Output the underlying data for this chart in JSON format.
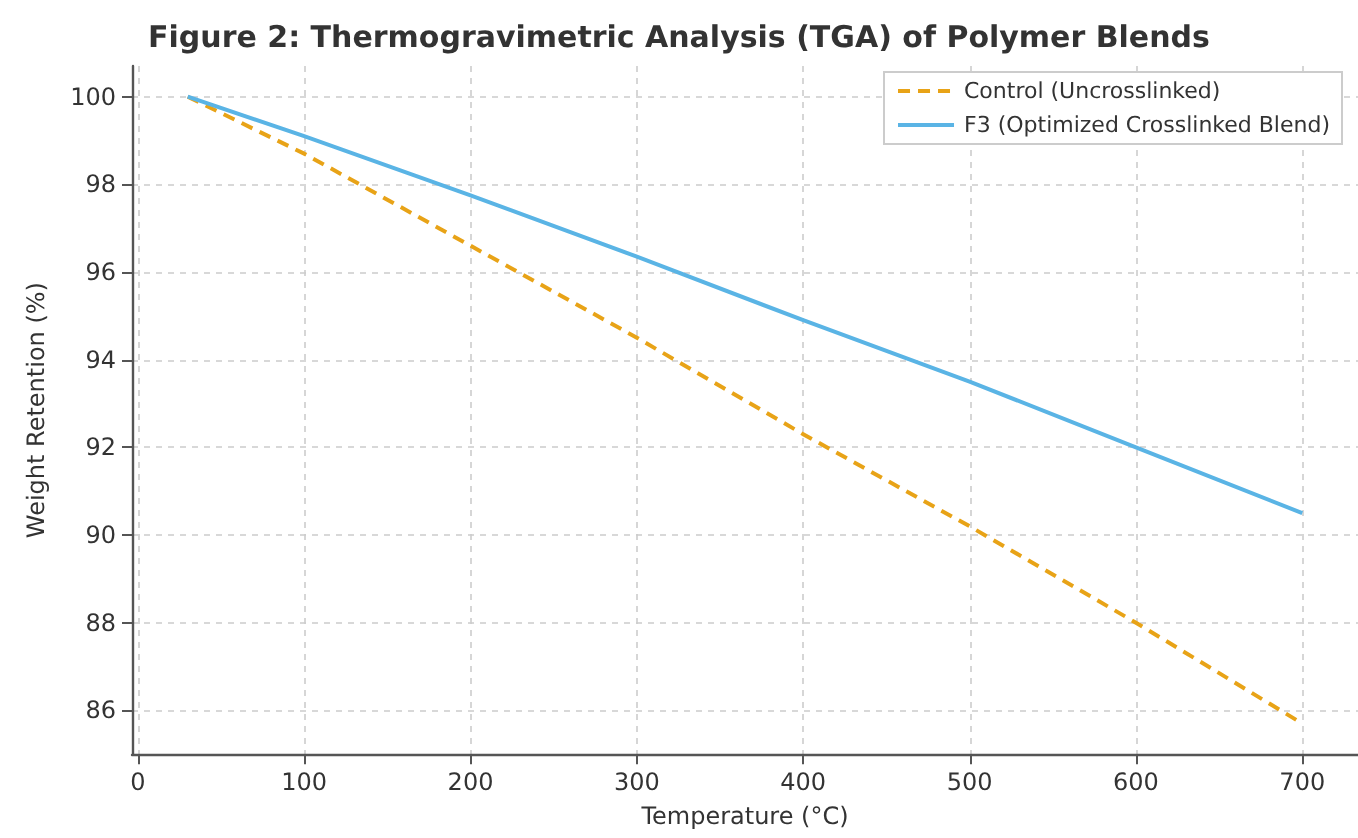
{
  "chart_data": {
    "type": "line",
    "title": "Figure 2: Thermogravimetric Analysis (TGA) of Polymer Blends",
    "xlabel": "Temperature (°C)",
    "ylabel": "Weight Retention (%)",
    "x": [
      30,
      100,
      200,
      300,
      400,
      500,
      600,
      700
    ],
    "series": [
      {
        "name": "Control (Uncrosslinked)",
        "color": "#e8a317",
        "line_style": "dashed",
        "values": [
          100,
          98.7,
          96.6,
          94.5,
          92.3,
          90.2,
          88.0,
          85.7
        ]
      },
      {
        "name": "F3 (Optimized Crosslinked Blend)",
        "color": "#5ab4e5",
        "line_style": "solid",
        "values": [
          100,
          99.1,
          97.75,
          96.35,
          94.9,
          93.5,
          92.0,
          90.5
        ]
      }
    ],
    "xlim": [
      -3.5,
      733.5
    ],
    "xticks": [
      0,
      100,
      200,
      300,
      400,
      500,
      600,
      700
    ],
    "ylim": [
      85,
      100.7
    ],
    "yticks": [
      86,
      88,
      90,
      92,
      94,
      96,
      98,
      100
    ],
    "grid": true,
    "legend": "top right",
    "marker": "none"
  }
}
